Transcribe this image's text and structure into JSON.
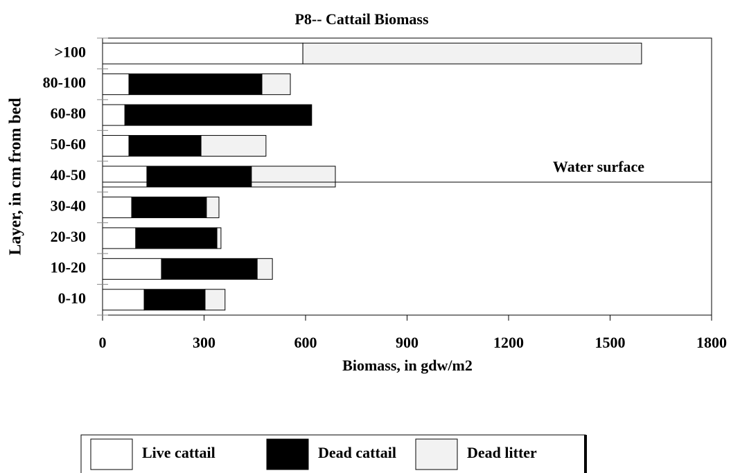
{
  "chart_data": {
    "type": "stacked_hbar",
    "title": "P8-- Cattail Biomass",
    "x_label": "Biomass, in gdw/m2",
    "y_label": "Layer, in cm from bed",
    "annotation": "Water surface",
    "categories": [
      ">100",
      "80-100",
      "60-80",
      "50-60",
      "40-50",
      "30-40",
      "20-30",
      "10-20",
      "0-10"
    ],
    "series": [
      {
        "name": "Live cattail",
        "color": "#ffffff",
        "values": [
          592,
          78,
          66,
          78,
          131,
          86,
          98,
          174,
          123
        ]
      },
      {
        "name": "Dead cattail",
        "color": "#000000",
        "values": [
          0,
          393,
          552,
          213,
          309,
          221,
          240,
          283,
          180
        ]
      },
      {
        "name": "Dead litter",
        "color": "#f2f2f2",
        "values": [
          1001,
          84,
          0,
          192,
          248,
          37,
          12,
          45,
          59
        ]
      }
    ],
    "xlim": [
      0,
      1800
    ],
    "xticks": [
      0,
      300,
      600,
      900,
      1200,
      1500,
      1800
    ]
  }
}
